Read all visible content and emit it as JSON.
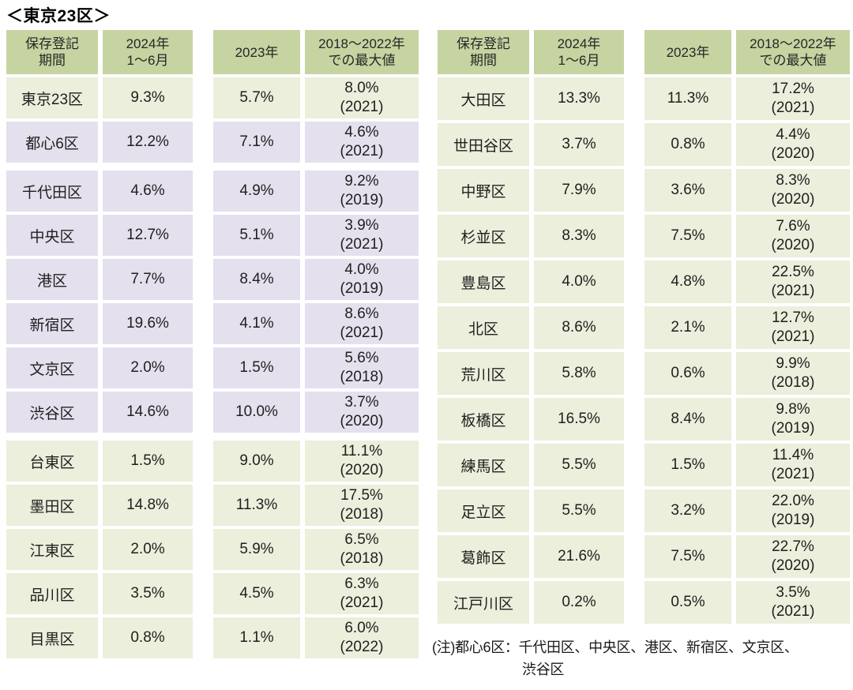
{
  "title": "＜東京23区＞",
  "colors": {
    "header_bg": "#c6d4a1",
    "green_row": "#ebefdb",
    "purple_row": "#e4e0ee",
    "text": "#1f1f1f"
  },
  "headers": [
    {
      "lines": [
        "保存登記",
        "期間"
      ]
    },
    {
      "lines": [
        "2024年",
        "1〜6月"
      ]
    },
    {
      "lines": [
        "2023年"
      ]
    },
    {
      "lines": [
        "2018〜2022年",
        "での最大値"
      ]
    }
  ],
  "tables": {
    "left": {
      "groups": [
        {
          "rows": [
            {
              "name": "東京23区",
              "v2024": "9.3%",
              "v2023": "5.7%",
              "max": "8.0%",
              "max_year": "(2021)",
              "tone": "green"
            },
            {
              "name": "都心6区",
              "v2024": "12.2%",
              "v2023": "7.1%",
              "max": "4.6%",
              "max_year": "(2021)",
              "tone": "purple"
            }
          ]
        },
        {
          "rows": [
            {
              "name": "千代田区",
              "v2024": "4.6%",
              "v2023": "4.9%",
              "max": "9.2%",
              "max_year": "(2019)",
              "tone": "purple"
            },
            {
              "name": "中央区",
              "v2024": "12.7%",
              "v2023": "5.1%",
              "max": "3.9%",
              "max_year": "(2021)",
              "tone": "purple"
            },
            {
              "name": "港区",
              "v2024": "7.7%",
              "v2023": "8.4%",
              "max": "4.0%",
              "max_year": "(2019)",
              "tone": "purple"
            },
            {
              "name": "新宿区",
              "v2024": "19.6%",
              "v2023": "4.1%",
              "max": "8.6%",
              "max_year": "(2021)",
              "tone": "purple"
            },
            {
              "name": "文京区",
              "v2024": "2.0%",
              "v2023": "1.5%",
              "max": "5.6%",
              "max_year": "(2018)",
              "tone": "purple"
            },
            {
              "name": "渋谷区",
              "v2024": "14.6%",
              "v2023": "10.0%",
              "max": "3.7%",
              "max_year": "(2020)",
              "tone": "purple"
            }
          ]
        },
        {
          "rows": [
            {
              "name": "台東区",
              "v2024": "1.5%",
              "v2023": "9.0%",
              "max": "11.1%",
              "max_year": "(2020)",
              "tone": "green"
            },
            {
              "name": "墨田区",
              "v2024": "14.8%",
              "v2023": "11.3%",
              "max": "17.5%",
              "max_year": "(2018)",
              "tone": "green"
            },
            {
              "name": "江東区",
              "v2024": "2.0%",
              "v2023": "5.9%",
              "max": "6.5%",
              "max_year": "(2018)",
              "tone": "green"
            },
            {
              "name": "品川区",
              "v2024": "3.5%",
              "v2023": "4.5%",
              "max": "6.3%",
              "max_year": "(2021)",
              "tone": "green"
            },
            {
              "name": "目黒区",
              "v2024": "0.8%",
              "v2023": "1.1%",
              "max": "6.0%",
              "max_year": "(2022)",
              "tone": "green"
            }
          ]
        }
      ]
    },
    "right": {
      "groups": [
        {
          "rows": [
            {
              "name": "大田区",
              "v2024": "13.3%",
              "v2023": "11.3%",
              "max": "17.2%",
              "max_year": "(2021)",
              "tone": "green"
            },
            {
              "name": "世田谷区",
              "v2024": "3.7%",
              "v2023": "0.8%",
              "max": "4.4%",
              "max_year": "(2020)",
              "tone": "green"
            },
            {
              "name": "中野区",
              "v2024": "7.9%",
              "v2023": "3.6%",
              "max": "8.3%",
              "max_year": "(2020)",
              "tone": "green"
            },
            {
              "name": "杉並区",
              "v2024": "8.3%",
              "v2023": "7.5%",
              "max": "7.6%",
              "max_year": "(2020)",
              "tone": "green"
            },
            {
              "name": "豊島区",
              "v2024": "4.0%",
              "v2023": "4.8%",
              "max": "22.5%",
              "max_year": "(2021)",
              "tone": "green"
            },
            {
              "name": "北区",
              "v2024": "8.6%",
              "v2023": "2.1%",
              "max": "12.7%",
              "max_year": "(2021)",
              "tone": "green"
            },
            {
              "name": "荒川区",
              "v2024": "5.8%",
              "v2023": "0.6%",
              "max": "9.9%",
              "max_year": "(2018)",
              "tone": "green"
            },
            {
              "name": "板橋区",
              "v2024": "16.5%",
              "v2023": "8.4%",
              "max": "9.8%",
              "max_year": "(2019)",
              "tone": "green"
            },
            {
              "name": "練馬区",
              "v2024": "5.5%",
              "v2023": "1.5%",
              "max": "11.4%",
              "max_year": "(2021)",
              "tone": "green"
            },
            {
              "name": "足立区",
              "v2024": "5.5%",
              "v2023": "3.2%",
              "max": "22.0%",
              "max_year": "(2019)",
              "tone": "green"
            },
            {
              "name": "葛飾区",
              "v2024": "21.6%",
              "v2023": "7.5%",
              "max": "22.7%",
              "max_year": "(2020)",
              "tone": "green"
            },
            {
              "name": "江戸川区",
              "v2024": "0.2%",
              "v2023": "0.5%",
              "max": "3.5%",
              "max_year": "(2021)",
              "tone": "green"
            }
          ]
        }
      ]
    }
  },
  "note": {
    "line1": "(注)都心6区：千代田区、中央区、港区、新宿区、文京区、",
    "line2": "渋谷区"
  }
}
